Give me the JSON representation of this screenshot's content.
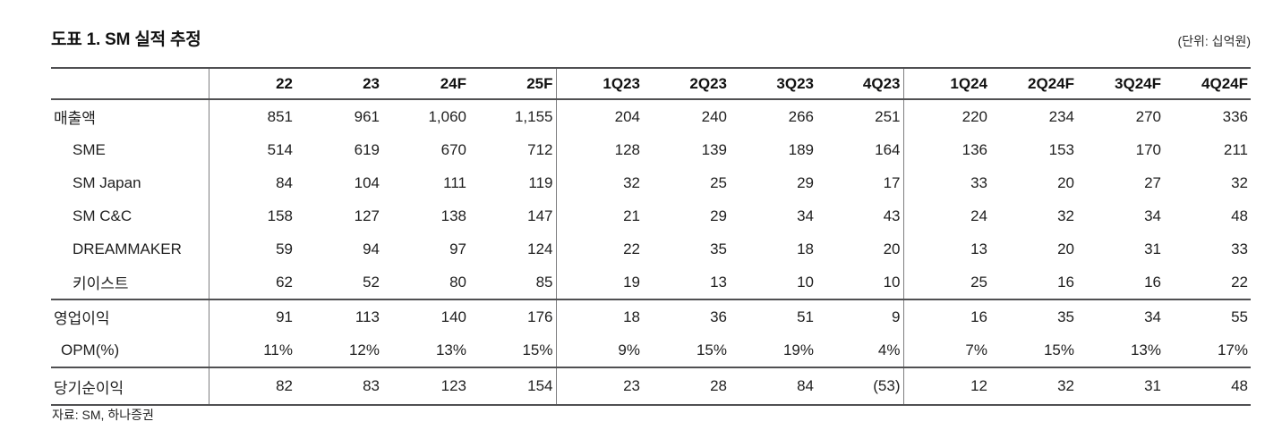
{
  "page": {
    "title": "도표 1. SM 실적 추정",
    "unit_note": "(단위: 십억원)",
    "source_note": "자료: SM, 하나증권"
  },
  "table": {
    "columns": [
      "22",
      "23",
      "24F",
      "25F",
      "1Q23",
      "2Q23",
      "3Q23",
      "4Q23",
      "1Q24",
      "2Q24F",
      "3Q24F",
      "4Q24F"
    ],
    "group_starts": [
      0,
      4,
      8
    ],
    "rows": [
      {
        "label": "매출액",
        "indent": 0,
        "rule_below": false,
        "tall": false,
        "values": [
          "851",
          "961",
          "1,060",
          "1,155",
          "204",
          "240",
          "266",
          "251",
          "220",
          "234",
          "270",
          "336"
        ]
      },
      {
        "label": "SME",
        "indent": 2,
        "rule_below": false,
        "tall": false,
        "values": [
          "514",
          "619",
          "670",
          "712",
          "128",
          "139",
          "189",
          "164",
          "136",
          "153",
          "170",
          "211"
        ]
      },
      {
        "label": "SM Japan",
        "indent": 2,
        "rule_below": false,
        "tall": false,
        "values": [
          "84",
          "104",
          "111",
          "119",
          "32",
          "25",
          "29",
          "17",
          "33",
          "20",
          "27",
          "32"
        ]
      },
      {
        "label": "SM C&C",
        "indent": 2,
        "rule_below": false,
        "tall": false,
        "values": [
          "158",
          "127",
          "138",
          "147",
          "21",
          "29",
          "34",
          "43",
          "24",
          "32",
          "34",
          "48"
        ]
      },
      {
        "label": "DREAMMAKER",
        "indent": 2,
        "rule_below": false,
        "tall": false,
        "values": [
          "59",
          "94",
          "97",
          "124",
          "22",
          "35",
          "18",
          "20",
          "13",
          "20",
          "31",
          "33"
        ]
      },
      {
        "label": "키이스트",
        "indent": 2,
        "rule_below": true,
        "tall": false,
        "values": [
          "62",
          "52",
          "80",
          "85",
          "19",
          "13",
          "10",
          "10",
          "25",
          "16",
          "16",
          "22"
        ]
      },
      {
        "label": "영업이익",
        "indent": 0,
        "rule_below": false,
        "tall": false,
        "values": [
          "91",
          "113",
          "140",
          "176",
          "18",
          "36",
          "51",
          "9",
          "16",
          "35",
          "34",
          "55"
        ]
      },
      {
        "label": "OPM(%)",
        "indent": 1,
        "rule_below": true,
        "tall": false,
        "values": [
          "11%",
          "12%",
          "13%",
          "15%",
          "9%",
          "15%",
          "19%",
          "4%",
          "7%",
          "15%",
          "13%",
          "17%"
        ]
      },
      {
        "label": "당기순이익",
        "indent": 0,
        "rule_below": false,
        "tall": true,
        "values": [
          "82",
          "83",
          "123",
          "154",
          "23",
          "28",
          "84",
          "(53)",
          "12",
          "32",
          "31",
          "48"
        ]
      }
    ]
  }
}
